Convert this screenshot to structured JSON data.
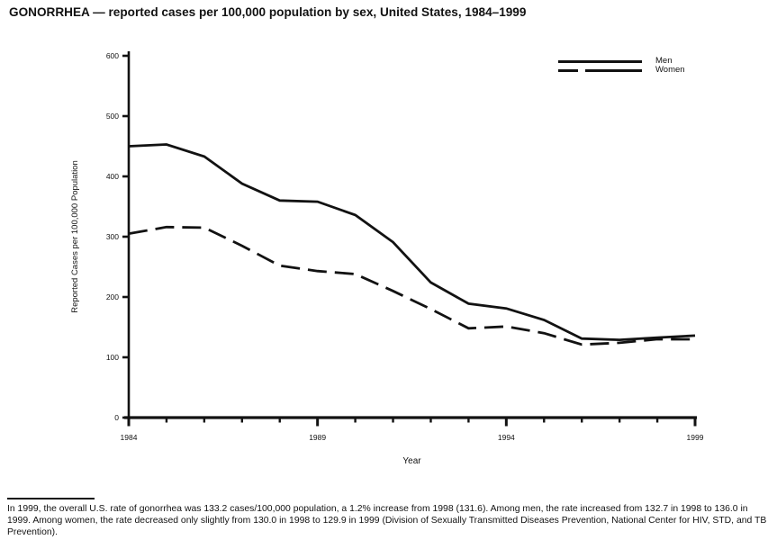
{
  "page": {
    "background": "#ffffff",
    "text_color": "#121212"
  },
  "chart_data": {
    "type": "line",
    "title": "GONORRHEA — reported cases per 100,000 population by sex, United States, 1984–1999",
    "x": [
      1984,
      1985,
      1986,
      1987,
      1988,
      1989,
      1990,
      1991,
      1992,
      1993,
      1994,
      1995,
      1996,
      1997,
      1998,
      1999
    ],
    "xticks_labeled": [
      1984,
      1989,
      1994,
      1999
    ],
    "series": [
      {
        "name": "Men",
        "line_style": "solid",
        "values": [
          450,
          453,
          433,
          388,
          360,
          358,
          336,
          291,
          224,
          189,
          181,
          162,
          131,
          129,
          132.7,
          136.0
        ]
      },
      {
        "name": "Women",
        "line_style": "dashed",
        "values": [
          305,
          316,
          315,
          285,
          252,
          243,
          238,
          210,
          180,
          148,
          151,
          140,
          121,
          124,
          130.0,
          129.9
        ]
      }
    ],
    "xlabel": "Year",
    "ylabel": "Reported Cases per 100,000 Population",
    "ylim": [
      0,
      600
    ],
    "yticks": [
      0,
      100,
      200,
      300,
      400,
      500,
      600
    ],
    "grid": false,
    "legend_position": "top-right",
    "line_color": "#121212"
  },
  "footnote": {
    "text": "In 1999, the overall U.S. rate of gonorrhea was 133.2 cases/100,000 population, a 1.2% increase from 1998 (131.6). Among men, the rate increased from 132.7 in 1998 to 136.0 in 1999. Among women, the rate decreased only slightly from 130.0 in 1998 to 129.9 in 1999 (Division of Sexually Transmitted Diseases Prevention, National Center for HIV, STD, and TB Prevention)."
  }
}
